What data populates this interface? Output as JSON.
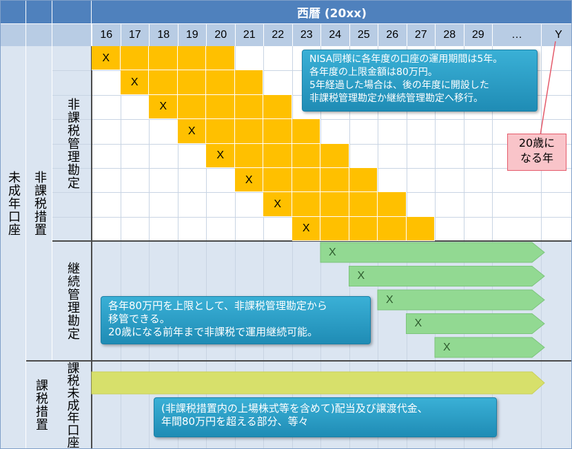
{
  "header": {
    "title": "西暦 (20xx)"
  },
  "years": [
    "16",
    "17",
    "18",
    "19",
    "20",
    "21",
    "22",
    "23",
    "24",
    "25",
    "26",
    "27",
    "28",
    "29",
    "…",
    "Y"
  ],
  "row_labels": {
    "minor_account": "未成年口座",
    "tax_exempt_measure": "非課税措置",
    "tax_exempt_custody": "非課税管理勘定",
    "continuation_custody": "継続管理勘定",
    "taxable_measure": "課税措置",
    "taxable_minor_account": "課税未成年口座"
  },
  "marks": {
    "x": "X"
  },
  "tax_exempt_years": 8,
  "continuation_rows": 5,
  "notes": {
    "nisa": [
      "NISA同様に各年度の口座の運用期間は5年。",
      "各年度の上限金額は80万円。",
      "5年経過した場合は、後の年度に開設した",
      "非課税管理勘定か継続管理勘定へ移行。"
    ],
    "continuation": [
      "各年80万円を上限として、非課税管理勘定から",
      "移管できる。",
      "20歳になる前年まで非課税で運用継続可能。"
    ],
    "taxable": [
      "(非課税措置内の上場株式等を含めて)配当及び譲渡代金、",
      "年間80万円を超える部分、等々"
    ],
    "age20": [
      "20歳に",
      "なる年"
    ]
  },
  "colors": {
    "header_dark": "#4f81bd",
    "header_light": "#b8cce4",
    "tax_exempt_cell": "#ffc000",
    "continuation_arrow": "#92d992",
    "taxable_arrow": "#d7e06b",
    "note_bg": "#2a9fc9",
    "callout_bg": "#f9c4c9"
  },
  "icons": [
    "x-mark",
    "right-arrow-shape",
    "callout-pointer"
  ]
}
